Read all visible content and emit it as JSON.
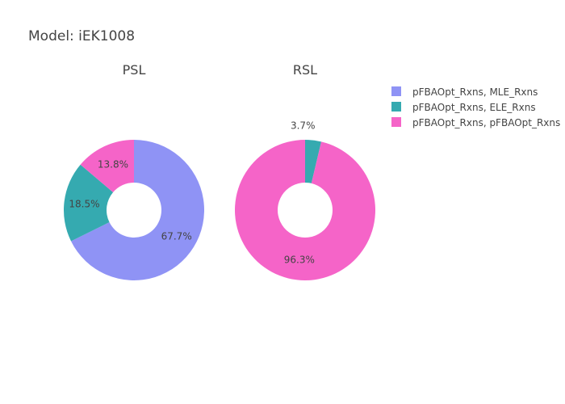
{
  "chart_data": {
    "type": "pie",
    "title": "Model: iEK1008",
    "legend_position": "top-right",
    "series": [
      {
        "name": "pFBAOpt_Rxns, MLE_Rxns",
        "color": "#8f93f5"
      },
      {
        "name": "pFBAOpt_Rxns, ELE_Rxns",
        "color": "#35aab0"
      },
      {
        "name": "pFBAOpt_Rxns, pFBAOpt_Rxns",
        "color": "#f564c8"
      }
    ],
    "charts": [
      {
        "title": "PSL",
        "values": [
          67.7,
          18.5,
          13.8
        ],
        "labels": [
          "67.7%",
          "18.5%",
          "13.8%"
        ]
      },
      {
        "title": "RSL",
        "values": [
          0,
          3.7,
          96.3
        ],
        "labels": [
          "",
          "3.7%",
          "96.3%"
        ]
      }
    ]
  }
}
